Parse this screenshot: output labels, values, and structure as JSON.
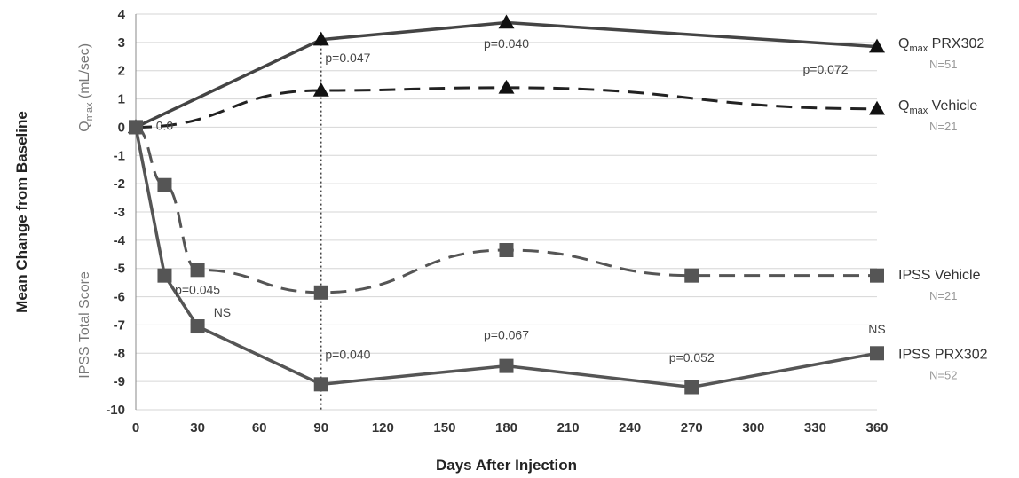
{
  "chart_data": {
    "type": "line",
    "xlabel": "Days After Injection",
    "ylabel": "Mean Change from Baseline",
    "upper_axis_label": "Qmax (mL/sec)",
    "lower_axis_label": "IPSS Total Score",
    "xlim": [
      0,
      360
    ],
    "ylim": [
      -10,
      4
    ],
    "x_ticks": [
      0,
      30,
      60,
      90,
      120,
      150,
      180,
      210,
      240,
      270,
      300,
      330,
      360
    ],
    "y_ticks": [
      4,
      3,
      2,
      1,
      0,
      -1,
      -2,
      -3,
      -4,
      -5,
      -6,
      -7,
      -8,
      -9,
      -10
    ],
    "grid": true,
    "reference_line_x": 90,
    "series": [
      {
        "name": "Qmax PRX302",
        "n_label": "N=51",
        "style": "solid",
        "marker": "triangle",
        "color": "#444444",
        "x": [
          0,
          90,
          180,
          360
        ],
        "y": [
          0,
          3.1,
          3.7,
          2.85
        ]
      },
      {
        "name": "Qmax Vehicle",
        "n_label": "N=21",
        "style": "dashed",
        "marker": "triangle",
        "color": "#222222",
        "x": [
          0,
          90,
          180,
          360
        ],
        "y": [
          0,
          1.3,
          1.4,
          0.65
        ]
      },
      {
        "name": "IPSS Vehicle",
        "n_label": "N=21",
        "style": "dashed",
        "marker": "square",
        "color": "#555555",
        "x": [
          0,
          14,
          30,
          90,
          180,
          270,
          360
        ],
        "y": [
          0,
          -2.05,
          -5.05,
          -5.85,
          -4.35,
          -5.25,
          -5.25
        ]
      },
      {
        "name": "IPSS PRX302",
        "n_label": "N=52",
        "style": "solid",
        "marker": "square",
        "color": "#555555",
        "x": [
          0,
          14,
          30,
          90,
          180,
          270,
          360
        ],
        "y": [
          0,
          -5.25,
          -7.05,
          -9.1,
          -8.45,
          -9.2,
          -8.0
        ]
      }
    ],
    "annotations": [
      {
        "text": "0.0",
        "x": 14,
        "y": -0.1
      },
      {
        "text": "p=0.047",
        "x": 103,
        "y": 2.3
      },
      {
        "text": "p=0.040",
        "x": 180,
        "y": 2.8
      },
      {
        "text": "p=0.072",
        "x": 335,
        "y": 1.9
      },
      {
        "text": "p=0.045",
        "x": 30,
        "y": -5.9
      },
      {
        "text": "NS",
        "x": 42,
        "y": -6.7
      },
      {
        "text": "p=0.040",
        "x": 103,
        "y": -8.2
      },
      {
        "text": "p=0.067",
        "x": 180,
        "y": -7.5
      },
      {
        "text": "p=0.052",
        "x": 270,
        "y": -8.3
      },
      {
        "text": "NS",
        "x": 360,
        "y": -7.3
      }
    ]
  }
}
